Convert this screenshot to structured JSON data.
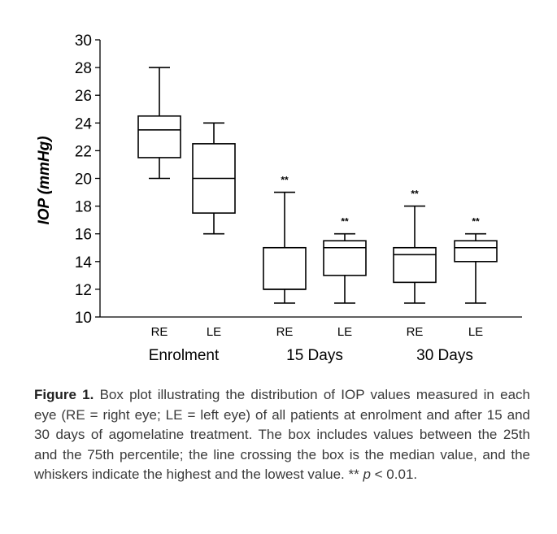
{
  "chart_data": {
    "type": "box",
    "ylabel": "IOP (mmHg)",
    "ylim": [
      10,
      30
    ],
    "yticks": [
      10,
      12,
      14,
      16,
      18,
      20,
      22,
      24,
      26,
      28,
      30
    ],
    "boxes": [
      {
        "label": "RE",
        "group": "Enrolment",
        "min": 20,
        "q1": 21.5,
        "median": 23.5,
        "q3": 24.5,
        "max": 28,
        "sig": ""
      },
      {
        "label": "LE",
        "group": "Enrolment",
        "min": 16,
        "q1": 17.5,
        "median": 20,
        "q3": 22.5,
        "max": 24,
        "sig": ""
      },
      {
        "label": "RE",
        "group": "15 Days",
        "min": 11,
        "q1": 12,
        "median": 12,
        "q3": 15,
        "max": 19,
        "sig": "**"
      },
      {
        "label": "LE",
        "group": "15 Days",
        "min": 11,
        "q1": 13,
        "median": 15,
        "q3": 15.5,
        "max": 16,
        "sig": "**"
      },
      {
        "label": "RE",
        "group": "30 Days",
        "min": 11,
        "q1": 12.5,
        "median": 14.5,
        "q3": 15,
        "max": 18,
        "sig": "**"
      },
      {
        "label": "LE",
        "group": "30 Days",
        "min": 11,
        "q1": 14,
        "median": 15,
        "q3": 15.5,
        "max": 16,
        "sig": "**"
      }
    ],
    "groups": [
      "Enrolment",
      "15 Days",
      "30 Days"
    ]
  },
  "caption": {
    "label": "Figure 1.",
    "text_before_p": " Box plot illustrating the distribution of IOP values measured in each eye (RE = right eye; LE = left eye) of all patients at enrolment and after 15 and 30 days of agomelatine treatment. The box includes values between the 25th and the 75th percentile; the line crossing the box is the median value, and the whiskers indicate the highest and the lowest value. ** ",
    "p_symbol": "p",
    "text_after_p": " < 0.01."
  }
}
